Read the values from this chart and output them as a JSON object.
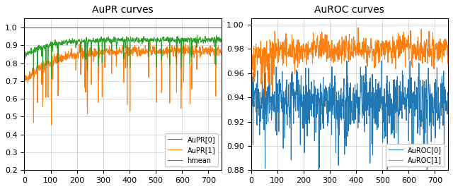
{
  "n": 750,
  "title_left": "AuPR curves",
  "title_right": "AuROC curves",
  "legend_left": [
    "AuPR[0]",
    "AuPR[1]",
    "hmean"
  ],
  "legend_right": [
    "AuROC[0]",
    "AuROC[1]"
  ],
  "colors_left": [
    "#1f77b4",
    "#ff7f0e",
    "#2ca02c"
  ],
  "colors_right": [
    "#1f77b4",
    "#ff7f0e"
  ],
  "ylim_left": [
    0.2,
    1.05
  ],
  "ylim_right": [
    0.88,
    1.005
  ],
  "yticks_left": [
    0.2,
    0.3,
    0.4,
    0.5,
    0.6,
    0.7,
    0.8,
    0.9,
    1.0
  ],
  "yticks_right": [
    0.88,
    0.9,
    0.92,
    0.94,
    0.96,
    0.98,
    1.0
  ],
  "xlim": [
    0,
    750
  ],
  "linewidth": 0.8,
  "background_color": "#ffffff"
}
